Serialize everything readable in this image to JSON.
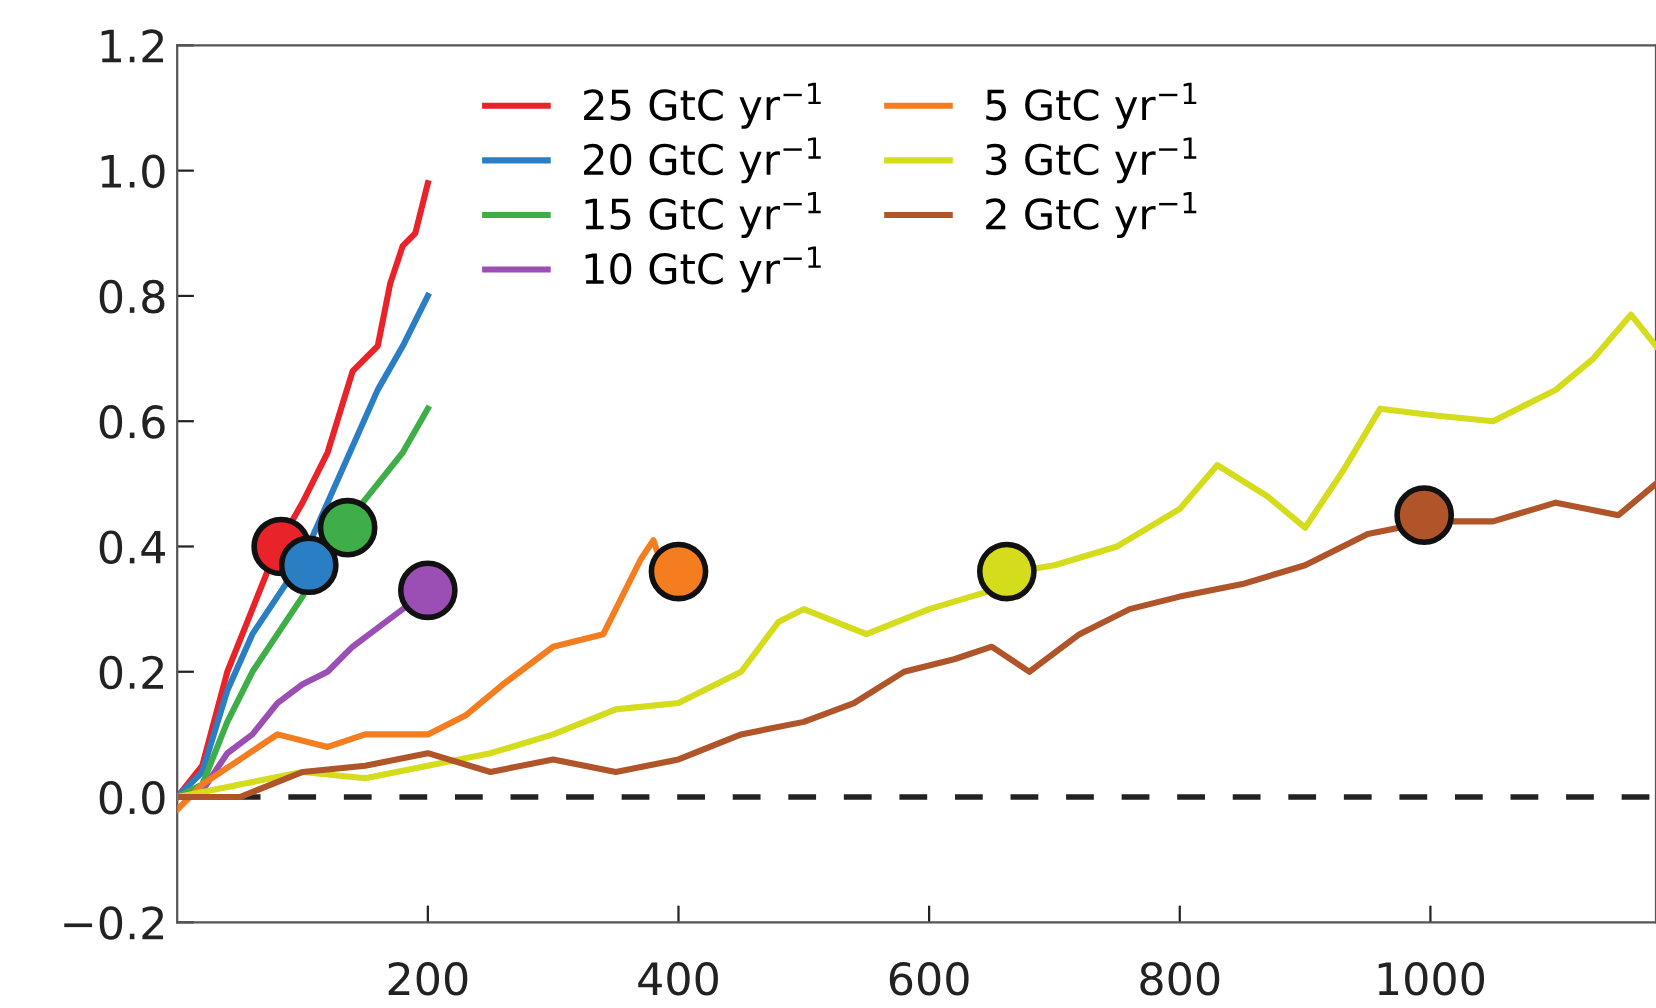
{
  "chart_data": {
    "type": "line",
    "xlim": [
      0,
      1180
    ],
    "ylim": [
      -0.2,
      1.2
    ],
    "xticks": [
      200,
      400,
      600,
      800,
      1000
    ],
    "yticks": [
      {
        "value": -0.2,
        "label": "−0.2"
      },
      {
        "value": 0,
        "label": "0.0"
      },
      {
        "value": 0.2,
        "label": "0.2"
      },
      {
        "value": 0.4,
        "label": "0.4"
      },
      {
        "value": 0.6,
        "label": "0.6"
      },
      {
        "value": 0.8,
        "label": "0.8"
      },
      {
        "value": 1.0,
        "label": "1.0"
      },
      {
        "value": 1.2,
        "label": "1.2"
      }
    ],
    "grid": false,
    "legend": "top",
    "marker": "none",
    "line_style": "solid",
    "ref_lines": [
      {
        "axis": "y",
        "value": 0,
        "color": "#222222",
        "line_style": "dashed"
      }
    ],
    "series": [
      {
        "name": "25 GtC yr$^{−1}$",
        "color": "#e8232a",
        "x": [
          0,
          20,
          40,
          60,
          80,
          100,
          120,
          140,
          160,
          170,
          180,
          190,
          200
        ],
        "values": [
          0,
          0.05,
          0.2,
          0.3,
          0.4,
          0.47,
          0.55,
          0.68,
          0.72,
          0.82,
          0.88,
          0.9,
          0.98
        ]
      },
      {
        "name": "20 GtC yr$^{−1}$",
        "color": "#2a7fc4",
        "x": [
          0,
          20,
          40,
          60,
          80,
          100,
          120,
          140,
          160,
          180,
          200
        ],
        "values": [
          0,
          0.04,
          0.17,
          0.26,
          0.32,
          0.38,
          0.47,
          0.56,
          0.65,
          0.72,
          0.8
        ]
      },
      {
        "name": "15 GtC yr$^{−1}$",
        "color": "#3fae49",
        "x": [
          0,
          20,
          40,
          60,
          80,
          100,
          120,
          140,
          160,
          180,
          200
        ],
        "values": [
          0,
          0.02,
          0.12,
          0.2,
          0.26,
          0.32,
          null,
          0.45,
          0.5,
          0.55,
          0.62
        ]
      },
      {
        "name": "10 GtC yr$^{−1}$",
        "color": "#9b4fb5",
        "x": [
          0,
          20,
          40,
          60,
          80,
          100,
          120,
          140,
          160,
          180,
          200
        ],
        "values": [
          0,
          0.01,
          0.07,
          0.1,
          0.15,
          0.18,
          0.2,
          0.24,
          0.27,
          0.3,
          0.33
        ]
      },
      {
        "name": "5 GtC yr$^{−1}$",
        "color": "#f47d20",
        "x": [
          0,
          20,
          50,
          80,
          120,
          150,
          200,
          230,
          260,
          300,
          340,
          370,
          380,
          385
        ],
        "values": [
          -0.02,
          0.02,
          0.06,
          0.1,
          0.08,
          0.1,
          0.1,
          0.13,
          0.18,
          0.24,
          0.26,
          0.38,
          0.41,
          0.38
        ]
      },
      {
        "name": "3 GtC yr$^{−1}$",
        "color": "#d4dc1c",
        "x": [
          0,
          50,
          100,
          150,
          200,
          250,
          300,
          350,
          400,
          450,
          480,
          500,
          550,
          600,
          650,
          670,
          700,
          750,
          800,
          830,
          870,
          900,
          930,
          960,
          1000,
          1050,
          1100,
          1130,
          1160,
          1180
        ],
        "values": [
          0,
          0.02,
          0.04,
          0.03,
          0.05,
          0.07,
          0.1,
          0.14,
          0.15,
          0.2,
          0.28,
          0.3,
          0.26,
          0.3,
          0.33,
          0.36,
          0.37,
          0.4,
          0.46,
          0.53,
          0.48,
          0.43,
          0.52,
          0.62,
          0.61,
          0.6,
          0.65,
          0.7,
          0.77,
          0.72
        ]
      },
      {
        "name": "2 GtC yr$^{−1}$",
        "color": "#b0552a",
        "x": [
          0,
          50,
          100,
          150,
          200,
          250,
          300,
          350,
          400,
          450,
          500,
          540,
          580,
          620,
          650,
          680,
          720,
          760,
          800,
          850,
          900,
          950,
          1000,
          1050,
          1100,
          1150,
          1180
        ],
        "values": [
          0,
          0,
          0.04,
          0.05,
          0.07,
          0.04,
          0.06,
          0.04,
          0.06,
          0.1,
          0.12,
          0.15,
          0.2,
          0.22,
          0.24,
          0.2,
          0.26,
          0.3,
          0.32,
          0.34,
          0.37,
          0.42,
          0.44,
          0.44,
          0.47,
          0.45,
          0.5
        ]
      },
      {
        "type": "scatter",
        "x": [
          83,
          105,
          136,
          200,
          400,
          662,
          995
        ],
        "values": [
          0.4,
          0.37,
          0.43,
          0.33,
          0.36,
          0.36,
          0.45
        ],
        "colors": [
          "#e8232a",
          "#2a7fc4",
          "#3fae49",
          "#9b4fb5",
          "#f47d20",
          "#d4dc1c",
          "#b0552a"
        ],
        "marker": "circle"
      }
    ]
  }
}
